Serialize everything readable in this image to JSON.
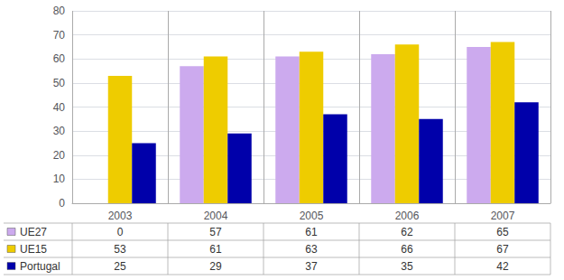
{
  "chart_data": {
    "type": "bar",
    "categories": [
      "2003",
      "2004",
      "2005",
      "2006",
      "2007"
    ],
    "series": [
      {
        "name": "UE27",
        "color": "#ccaaee",
        "values": [
          0,
          57,
          61,
          62,
          65
        ]
      },
      {
        "name": "UE15",
        "color": "#eecc00",
        "values": [
          53,
          61,
          63,
          66,
          67
        ]
      },
      {
        "name": "Portugal",
        "color": "#0000aa",
        "values": [
          25,
          29,
          37,
          35,
          42
        ]
      }
    ],
    "ylim": [
      0,
      80
    ],
    "yticks": [
      0,
      10,
      20,
      30,
      40,
      50,
      60,
      70,
      80
    ],
    "grid": true,
    "legend": "bottom"
  }
}
